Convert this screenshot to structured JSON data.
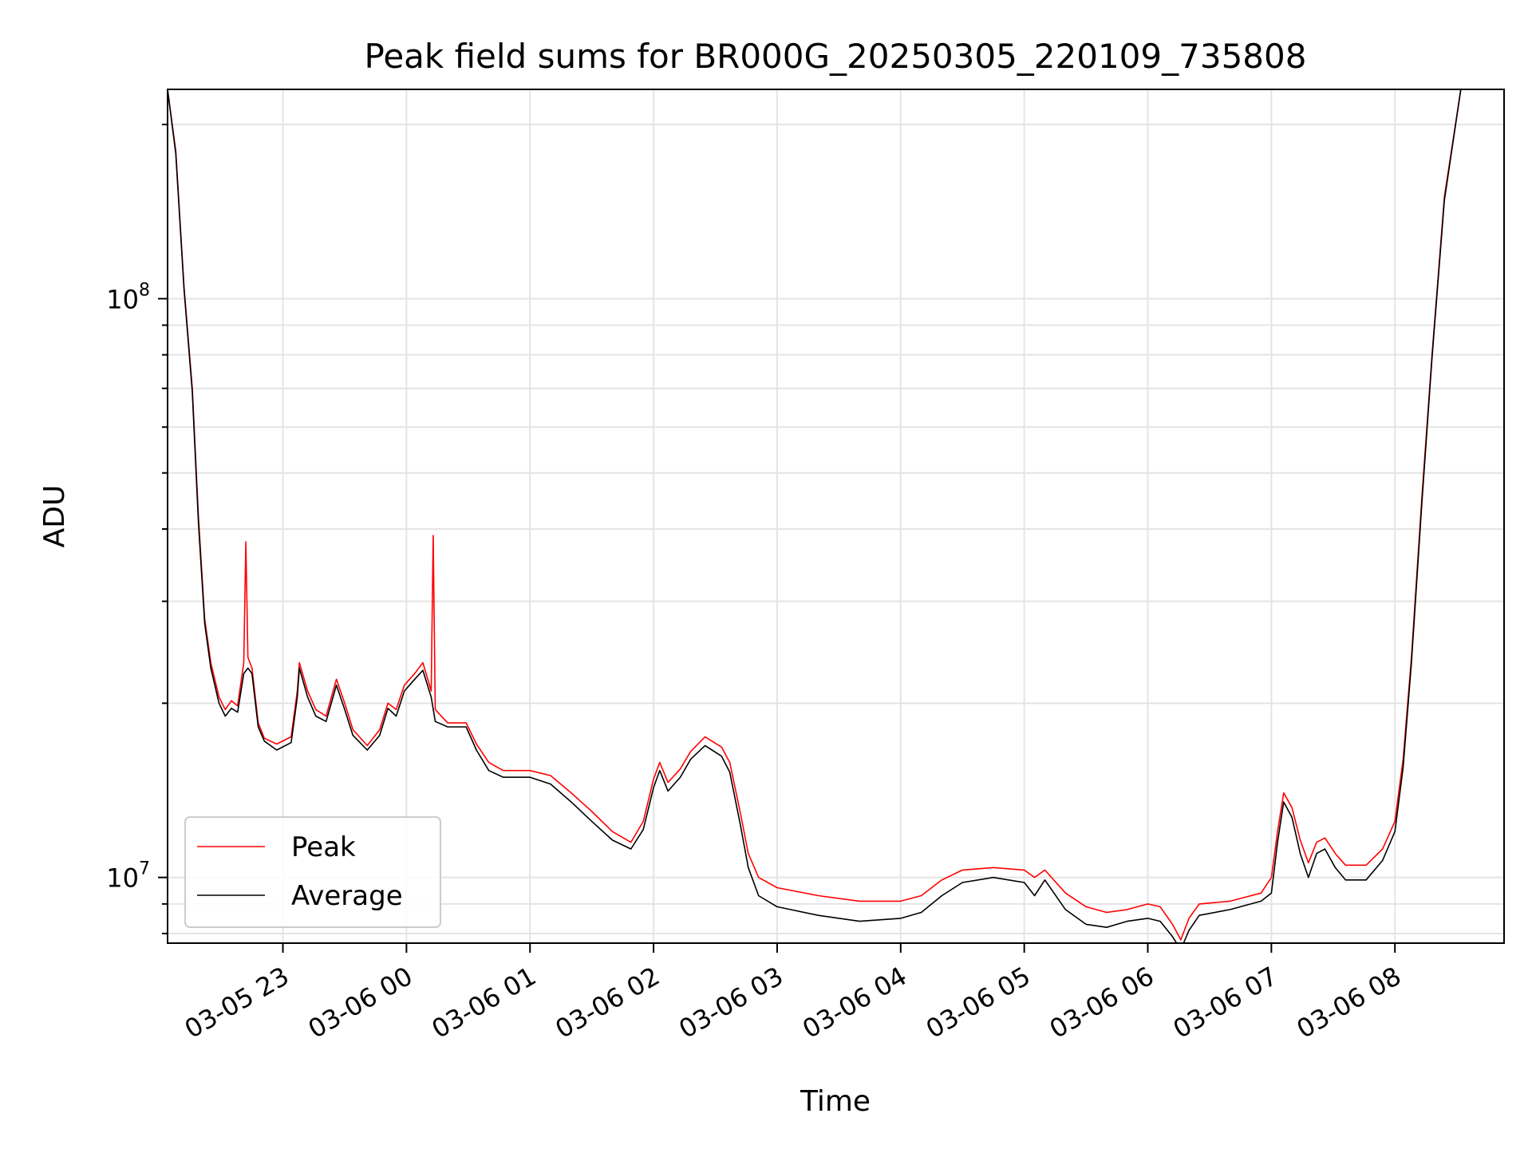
{
  "chart_data": {
    "type": "line",
    "title": "Peak field sums for BR000G_20250305_220109_735808",
    "xlabel": "Time",
    "ylabel": "ADU",
    "yscale": "log",
    "ylim": [
      7700000,
      230000000
    ],
    "xlim": [
      "03-05 22:04",
      "03-06 08:53"
    ],
    "grid": true,
    "legend_placement": "lower-left",
    "x_ticks": [
      {
        "t": "03-05 23:00",
        "label": "03-05 23"
      },
      {
        "t": "03-06 00:00",
        "label": "03-06 00"
      },
      {
        "t": "03-06 01:00",
        "label": "03-06 01"
      },
      {
        "t": "03-06 02:00",
        "label": "03-06 02"
      },
      {
        "t": "03-06 03:00",
        "label": "03-06 03"
      },
      {
        "t": "03-06 04:00",
        "label": "03-06 04"
      },
      {
        "t": "03-06 05:00",
        "label": "03-06 05"
      },
      {
        "t": "03-06 06:00",
        "label": "03-06 06"
      },
      {
        "t": "03-06 07:00",
        "label": "03-06 07"
      },
      {
        "t": "03-06 08:00",
        "label": "03-06 08"
      }
    ],
    "y_ticks": [
      {
        "value": 10000000,
        "base": "10",
        "exp": "7"
      },
      {
        "value": 100000000,
        "base": "10",
        "exp": "8"
      }
    ],
    "series": [
      {
        "name": "Peak",
        "color": "#ff0000",
        "points": [
          [
            "03-05 22:04",
            230000000
          ],
          [
            "03-05 22:08",
            180000000
          ],
          [
            "03-05 22:12",
            105000000
          ],
          [
            "03-05 22:16",
            70000000
          ],
          [
            "03-05 22:19",
            42000000
          ],
          [
            "03-05 22:22",
            28000000
          ],
          [
            "03-05 22:25",
            23500000
          ],
          [
            "03-05 22:29",
            20500000
          ],
          [
            "03-05 22:32",
            19500000
          ],
          [
            "03-05 22:35",
            20200000
          ],
          [
            "03-05 22:38",
            19800000
          ],
          [
            "03-05 22:41",
            23500000
          ],
          [
            "03-05 22:42",
            38000000
          ],
          [
            "03-05 22:43",
            24000000
          ],
          [
            "03-05 22:45",
            23000000
          ],
          [
            "03-05 22:48",
            18500000
          ],
          [
            "03-05 22:51",
            17400000
          ],
          [
            "03-05 22:57",
            17000000
          ],
          [
            "03-05 23:04",
            17500000
          ],
          [
            "03-05 23:07",
            21000000
          ],
          [
            "03-05 23:08",
            23500000
          ],
          [
            "03-05 23:12",
            21000000
          ],
          [
            "03-05 23:16",
            19500000
          ],
          [
            "03-05 23:21",
            19000000
          ],
          [
            "03-05 23:26",
            22000000
          ],
          [
            "03-05 23:30",
            20000000
          ],
          [
            "03-05 23:34",
            18000000
          ],
          [
            "03-05 23:41",
            16900000
          ],
          [
            "03-05 23:47",
            18000000
          ],
          [
            "03-05 23:51",
            20000000
          ],
          [
            "03-05 23:55",
            19500000
          ],
          [
            "03-05 23:59",
            21500000
          ],
          [
            "03-06 00:04",
            22500000
          ],
          [
            "03-06 00:08",
            23500000
          ],
          [
            "03-06 00:12",
            21000000
          ],
          [
            "03-06 00:13",
            39000000
          ],
          [
            "03-06 00:14",
            19500000
          ],
          [
            "03-06 00:20",
            18500000
          ],
          [
            "03-06 00:29",
            18500000
          ],
          [
            "03-06 00:34",
            17000000
          ],
          [
            "03-06 00:40",
            15800000
          ],
          [
            "03-06 00:47",
            15300000
          ],
          [
            "03-06 01:00",
            15300000
          ],
          [
            "03-06 01:10",
            15000000
          ],
          [
            "03-06 01:20",
            14000000
          ],
          [
            "03-06 01:30",
            13000000
          ],
          [
            "03-06 01:40",
            12000000
          ],
          [
            "03-06 01:49",
            11500000
          ],
          [
            "03-06 01:55",
            12500000
          ],
          [
            "03-06 02:00",
            14800000
          ],
          [
            "03-06 02:03",
            15800000
          ],
          [
            "03-06 02:07",
            14600000
          ],
          [
            "03-06 02:13",
            15400000
          ],
          [
            "03-06 02:18",
            16500000
          ],
          [
            "03-06 02:25",
            17500000
          ],
          [
            "03-06 02:33",
            16800000
          ],
          [
            "03-06 02:37",
            15800000
          ],
          [
            "03-06 02:42",
            13000000
          ],
          [
            "03-06 02:46",
            11000000
          ],
          [
            "03-06 02:51",
            10000000
          ],
          [
            "03-06 03:00",
            9600000
          ],
          [
            "03-06 03:20",
            9300000
          ],
          [
            "03-06 03:40",
            9100000
          ],
          [
            "03-06 04:00",
            9100000
          ],
          [
            "03-06 04:10",
            9300000
          ],
          [
            "03-06 04:20",
            9900000
          ],
          [
            "03-06 04:30",
            10300000
          ],
          [
            "03-06 04:45",
            10400000
          ],
          [
            "03-06 05:00",
            10300000
          ],
          [
            "03-06 05:05",
            10000000
          ],
          [
            "03-06 05:10",
            10300000
          ],
          [
            "03-06 05:20",
            9400000
          ],
          [
            "03-06 05:30",
            8900000
          ],
          [
            "03-06 05:40",
            8700000
          ],
          [
            "03-06 05:50",
            8800000
          ],
          [
            "03-06 06:00",
            9000000
          ],
          [
            "03-06 06:06",
            8900000
          ],
          [
            "03-06 06:12",
            8300000
          ],
          [
            "03-06 06:16",
            7800000
          ],
          [
            "03-06 06:20",
            8500000
          ],
          [
            "03-06 06:25",
            9000000
          ],
          [
            "03-06 06:40",
            9100000
          ],
          [
            "03-06 06:55",
            9400000
          ],
          [
            "03-06 07:00",
            10000000
          ],
          [
            "03-06 07:03",
            12000000
          ],
          [
            "03-06 07:06",
            14000000
          ],
          [
            "03-06 07:10",
            13200000
          ],
          [
            "03-06 07:14",
            11600000
          ],
          [
            "03-06 07:18",
            10600000
          ],
          [
            "03-06 07:22",
            11500000
          ],
          [
            "03-06 07:26",
            11700000
          ],
          [
            "03-06 07:31",
            11000000
          ],
          [
            "03-06 07:36",
            10500000
          ],
          [
            "03-06 07:46",
            10500000
          ],
          [
            "03-06 07:54",
            11200000
          ],
          [
            "03-06 08:00",
            12500000
          ],
          [
            "03-06 08:04",
            16000000
          ],
          [
            "03-06 08:08",
            24000000
          ],
          [
            "03-06 08:13",
            45000000
          ],
          [
            "03-06 08:18",
            80000000
          ],
          [
            "03-06 08:24",
            150000000
          ],
          [
            "03-06 08:32",
            230000000
          ]
        ]
      },
      {
        "name": "Average",
        "color": "#000000",
        "points": [
          [
            "03-05 22:04",
            230000000
          ],
          [
            "03-05 22:08",
            178000000
          ],
          [
            "03-05 22:12",
            104000000
          ],
          [
            "03-05 22:16",
            69000000
          ],
          [
            "03-05 22:19",
            41000000
          ],
          [
            "03-05 22:22",
            27500000
          ],
          [
            "03-05 22:25",
            23000000
          ],
          [
            "03-05 22:29",
            20000000
          ],
          [
            "03-05 22:32",
            19000000
          ],
          [
            "03-05 22:35",
            19600000
          ],
          [
            "03-05 22:38",
            19300000
          ],
          [
            "03-05 22:41",
            22500000
          ],
          [
            "03-05 22:43",
            23000000
          ],
          [
            "03-05 22:45",
            22500000
          ],
          [
            "03-05 22:48",
            18200000
          ],
          [
            "03-05 22:51",
            17200000
          ],
          [
            "03-05 22:57",
            16600000
          ],
          [
            "03-05 23:04",
            17100000
          ],
          [
            "03-05 23:07",
            20500000
          ],
          [
            "03-05 23:08",
            23000000
          ],
          [
            "03-05 23:12",
            20500000
          ],
          [
            "03-05 23:16",
            19000000
          ],
          [
            "03-05 23:21",
            18600000
          ],
          [
            "03-05 23:26",
            21500000
          ],
          [
            "03-05 23:30",
            19500000
          ],
          [
            "03-05 23:34",
            17600000
          ],
          [
            "03-05 23:41",
            16600000
          ],
          [
            "03-05 23:47",
            17600000
          ],
          [
            "03-05 23:51",
            19600000
          ],
          [
            "03-05 23:55",
            19000000
          ],
          [
            "03-05 23:59",
            21000000
          ],
          [
            "03-06 00:04",
            22000000
          ],
          [
            "03-06 00:08",
            22800000
          ],
          [
            "03-06 00:12",
            20500000
          ],
          [
            "03-06 00:14",
            18600000
          ],
          [
            "03-06 00:20",
            18200000
          ],
          [
            "03-06 00:29",
            18200000
          ],
          [
            "03-06 00:34",
            16600000
          ],
          [
            "03-06 00:40",
            15300000
          ],
          [
            "03-06 00:47",
            14900000
          ],
          [
            "03-06 01:00",
            14900000
          ],
          [
            "03-06 01:10",
            14500000
          ],
          [
            "03-06 01:20",
            13500000
          ],
          [
            "03-06 01:30",
            12500000
          ],
          [
            "03-06 01:40",
            11600000
          ],
          [
            "03-06 01:49",
            11200000
          ],
          [
            "03-06 01:55",
            12100000
          ],
          [
            "03-06 02:00",
            14300000
          ],
          [
            "03-06 02:03",
            15300000
          ],
          [
            "03-06 02:07",
            14100000
          ],
          [
            "03-06 02:13",
            14900000
          ],
          [
            "03-06 02:18",
            16000000
          ],
          [
            "03-06 02:25",
            16900000
          ],
          [
            "03-06 02:33",
            16200000
          ],
          [
            "03-06 02:37",
            15200000
          ],
          [
            "03-06 02:42",
            12400000
          ],
          [
            "03-06 02:46",
            10400000
          ],
          [
            "03-06 02:51",
            9300000
          ],
          [
            "03-06 03:00",
            8900000
          ],
          [
            "03-06 03:20",
            8600000
          ],
          [
            "03-06 03:40",
            8400000
          ],
          [
            "03-06 04:00",
            8500000
          ],
          [
            "03-06 04:10",
            8700000
          ],
          [
            "03-06 04:20",
            9300000
          ],
          [
            "03-06 04:30",
            9800000
          ],
          [
            "03-06 04:45",
            10000000
          ],
          [
            "03-06 05:00",
            9800000
          ],
          [
            "03-06 05:05",
            9300000
          ],
          [
            "03-06 05:10",
            9900000
          ],
          [
            "03-06 05:20",
            8800000
          ],
          [
            "03-06 05:30",
            8300000
          ],
          [
            "03-06 05:40",
            8200000
          ],
          [
            "03-06 05:50",
            8400000
          ],
          [
            "03-06 06:00",
            8500000
          ],
          [
            "03-06 06:06",
            8400000
          ],
          [
            "03-06 06:12",
            7900000
          ],
          [
            "03-06 06:16",
            7500000
          ],
          [
            "03-06 06:20",
            8100000
          ],
          [
            "03-06 06:25",
            8600000
          ],
          [
            "03-06 06:40",
            8800000
          ],
          [
            "03-06 06:55",
            9100000
          ],
          [
            "03-06 07:00",
            9400000
          ],
          [
            "03-06 07:03",
            11500000
          ],
          [
            "03-06 07:06",
            13500000
          ],
          [
            "03-06 07:10",
            12700000
          ],
          [
            "03-06 07:14",
            11000000
          ],
          [
            "03-06 07:18",
            10000000
          ],
          [
            "03-06 07:22",
            11000000
          ],
          [
            "03-06 07:26",
            11200000
          ],
          [
            "03-06 07:31",
            10400000
          ],
          [
            "03-06 07:36",
            9900000
          ],
          [
            "03-06 07:46",
            9900000
          ],
          [
            "03-06 07:54",
            10700000
          ],
          [
            "03-06 08:00",
            12000000
          ],
          [
            "03-06 08:04",
            15500000
          ],
          [
            "03-06 08:08",
            23500000
          ],
          [
            "03-06 08:13",
            44000000
          ],
          [
            "03-06 08:18",
            79000000
          ],
          [
            "03-06 08:24",
            148000000
          ],
          [
            "03-06 08:32",
            230000000
          ]
        ]
      }
    ]
  }
}
